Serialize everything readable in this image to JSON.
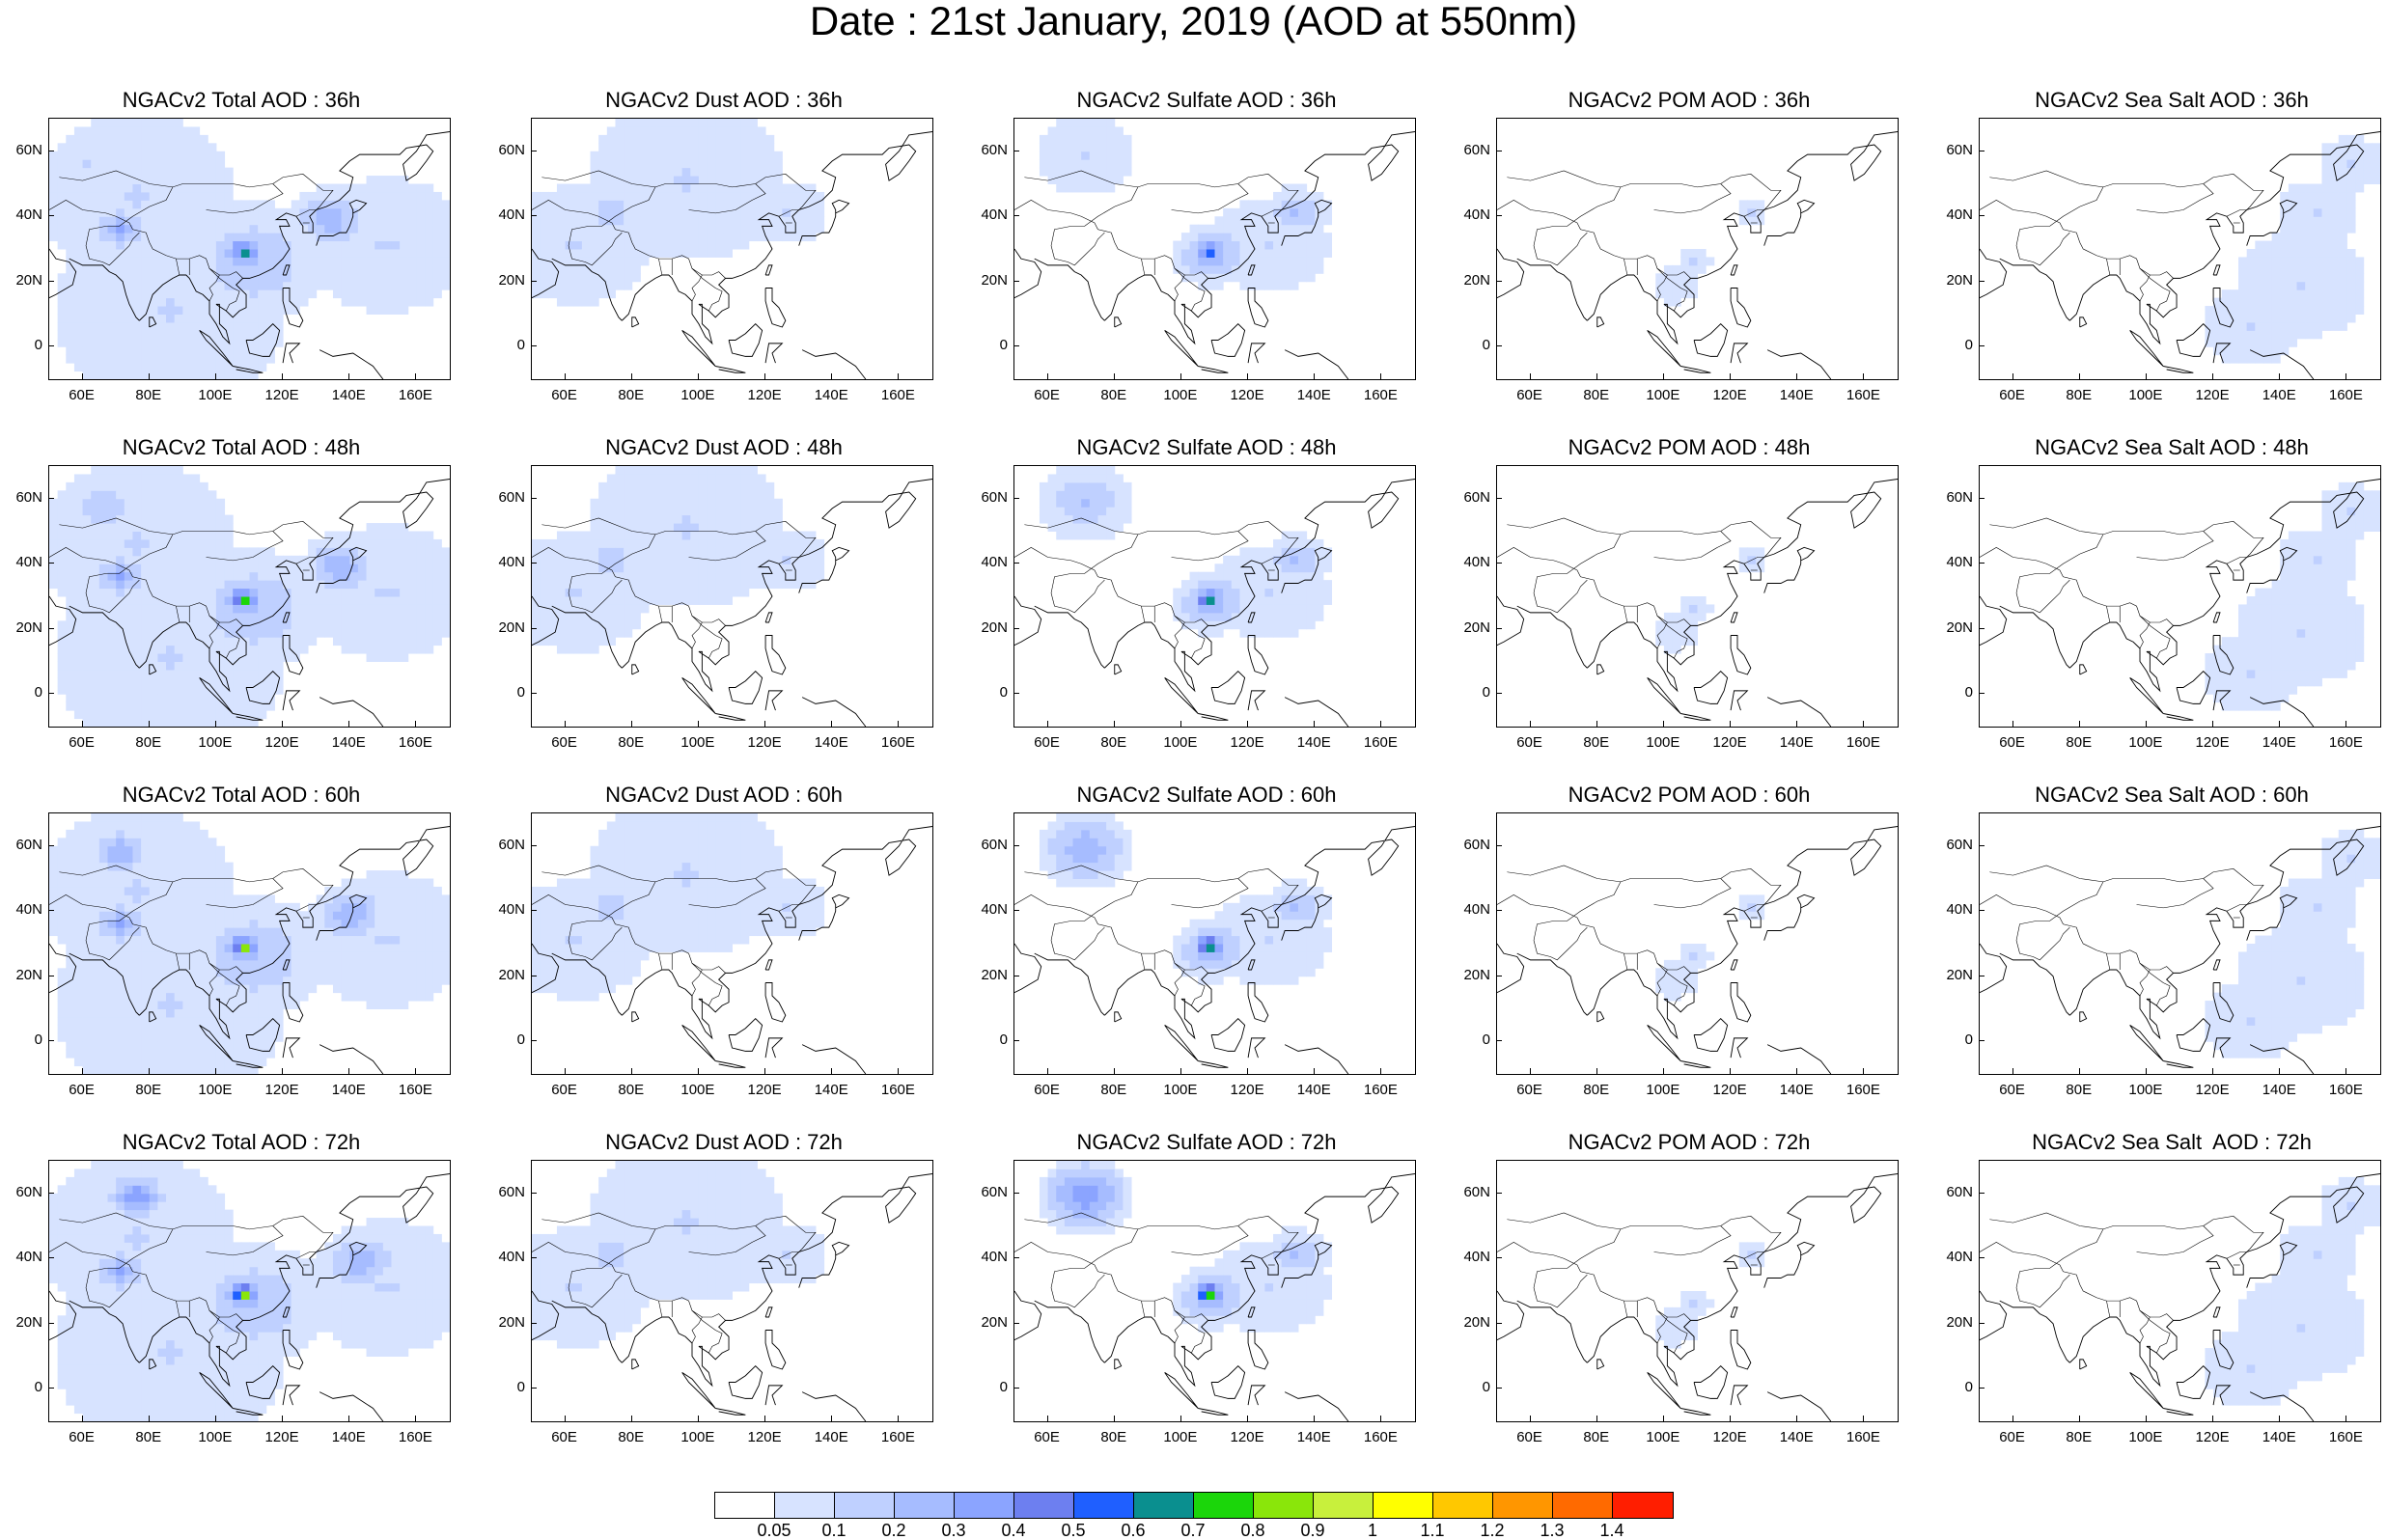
{
  "title": "Date : 21st January, 2019 (AOD at 550nm)",
  "map": {
    "lat_ticks": [
      "60N",
      "40N",
      "20N",
      "0"
    ],
    "lon_ticks": [
      "60E",
      "80E",
      "100E",
      "120E",
      "140E",
      "160E"
    ]
  },
  "panels": [
    {
      "title": "NGACv2 Total AOD : 36h",
      "species": "total"
    },
    {
      "title": "NGACv2 Dust AOD : 36h",
      "species": "dust"
    },
    {
      "title": "NGACv2 Sulfate AOD : 36h",
      "species": "sulfate"
    },
    {
      "title": "NGACv2 POM AOD : 36h",
      "species": "pom"
    },
    {
      "title": "NGACv2 Sea Salt AOD : 36h",
      "species": "seasalt"
    },
    {
      "title": "NGACv2 Total AOD : 48h",
      "species": "total"
    },
    {
      "title": "NGACv2 Dust AOD : 48h",
      "species": "dust"
    },
    {
      "title": "NGACv2 Sulfate AOD : 48h",
      "species": "sulfate"
    },
    {
      "title": "NGACv2 POM AOD : 48h",
      "species": "pom"
    },
    {
      "title": "NGACv2 Sea Salt AOD : 48h",
      "species": "seasalt"
    },
    {
      "title": "NGACv2 Total AOD : 60h",
      "species": "total"
    },
    {
      "title": "NGACv2 Dust AOD : 60h",
      "species": "dust"
    },
    {
      "title": "NGACv2 Sulfate AOD : 60h",
      "species": "sulfate"
    },
    {
      "title": "NGACv2 POM AOD : 60h",
      "species": "pom"
    },
    {
      "title": "NGACv2 Sea Salt AOD : 60h",
      "species": "seasalt"
    },
    {
      "title": "NGACv2 Total AOD : 72h",
      "species": "total"
    },
    {
      "title": "NGACv2 Dust AOD : 72h",
      "species": "dust"
    },
    {
      "title": "NGACv2 Sulfate AOD : 72h",
      "species": "sulfate"
    },
    {
      "title": "NGACv2 POM AOD : 72h",
      "species": "pom"
    },
    {
      "title": "NGACv2 Sea Salt  AOD : 72h",
      "species": "seasalt"
    }
  ],
  "colorbar": {
    "labels": [
      "0.05",
      "0.1",
      "0.2",
      "0.3",
      "0.4",
      "0.5",
      "0.6",
      "0.7",
      "0.8",
      "0.9",
      "1",
      "1.1",
      "1.2",
      "1.3",
      "1.4"
    ],
    "colors": [
      "#ffffff",
      "#d7e3ff",
      "#bfd0ff",
      "#a6bcff",
      "#8ba4ff",
      "#6d7ff0",
      "#1f5fff",
      "#0a8f8f",
      "#1bd60a",
      "#8ae60a",
      "#c8f03c",
      "#ffff00",
      "#ffc800",
      "#ff9600",
      "#ff6a00",
      "#ff1e00"
    ]
  }
}
